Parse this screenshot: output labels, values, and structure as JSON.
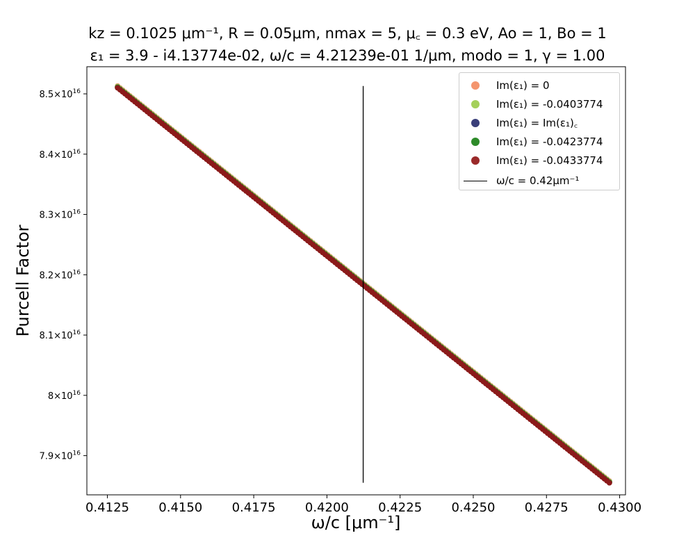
{
  "title": {
    "line1": "kz = 0.1025 μm⁻¹, R = 0.05μm, nmax = 5, μ꜀ = 0.3 eV, Ao = 1, Bo = 1",
    "line2": "ε₁ = 3.9 - i4.13774e-02, ω/c = 4.21239e-01 1/μm, modo = 1, γ = 1.00"
  },
  "legend": {
    "placement": "top-right",
    "items": [
      {
        "label": "Im(ε₁) = 0",
        "color": "#f4956e",
        "kind": "marker"
      },
      {
        "label": "Im(ε₁) = -0.0403774",
        "color": "#a4d05a",
        "kind": "marker"
      },
      {
        "label": "Im(ε₁) = Im(ε₁)꜀",
        "color": "#3a3f7a",
        "kind": "marker"
      },
      {
        "label": "Im(ε₁) = -0.0423774",
        "color": "#2e8b2a",
        "kind": "marker"
      },
      {
        "label": "Im(ε₁) = -0.0433774",
        "color": "#9a2a2a",
        "kind": "marker"
      },
      {
        "label": "ω/c = 0.42μm⁻¹",
        "color": "#000000",
        "kind": "line"
      }
    ]
  },
  "chart_data": {
    "type": "scatter",
    "xlabel": "ω/c [μm⁻¹]",
    "ylabel": "Purcell Factor",
    "xlim": [
      0.4118,
      0.4302
    ],
    "ylim": [
      7.835e+16,
      8.545e+16
    ],
    "grid": false,
    "x_ticks": [
      {
        "value": 0.4125,
        "label": "0.4125"
      },
      {
        "value": 0.415,
        "label": "0.4150"
      },
      {
        "value": 0.4175,
        "label": "0.4175"
      },
      {
        "value": 0.42,
        "label": "0.4200"
      },
      {
        "value": 0.4225,
        "label": "0.4225"
      },
      {
        "value": 0.425,
        "label": "0.4250"
      },
      {
        "value": 0.4275,
        "label": "0.4275"
      },
      {
        "value": 0.43,
        "label": "0.4300"
      }
    ],
    "y_ticks": [
      {
        "value": 7.9e+16,
        "mant": "7.9",
        "times": "×10",
        "exp": "16"
      },
      {
        "value": 8e+16,
        "mant": "8",
        "times": "×10",
        "exp": "16"
      },
      {
        "value": 8.1e+16,
        "mant": "8.1",
        "times": "×10",
        "exp": "16"
      },
      {
        "value": 8.2e+16,
        "mant": "8.2",
        "times": "×10",
        "exp": "16"
      },
      {
        "value": 8.3e+16,
        "mant": "8.3",
        "times": "×10",
        "exp": "16"
      },
      {
        "value": 8.4e+16,
        "mant": "8.4",
        "times": "×10",
        "exp": "16"
      },
      {
        "value": 8.5e+16,
        "mant": "8.5",
        "times": "×10",
        "exp": "16"
      }
    ],
    "series": [
      {
        "name": "Im(ε₁) = 0",
        "color": "#f4956e",
        "x_range": [
          0.41285,
          0.42965
        ],
        "y_range": [
          8.513e+16,
          7.858e+16
        ],
        "points": 200
      },
      {
        "name": "Im(ε₁) = -0.0403774",
        "color": "#a4d05a",
        "x_range": [
          0.41285,
          0.42965
        ],
        "y_range": [
          8.512e+16,
          7.857e+16
        ],
        "points": 200
      },
      {
        "name": "Im(ε₁) = Im(ε₁)꜀",
        "color": "#3a3f7a",
        "x_range": [
          0.41285,
          0.42965
        ],
        "y_range": [
          8.511e+16,
          7.856e+16
        ],
        "points": 200
      },
      {
        "name": "Im(ε₁) = -0.0423774",
        "color": "#2e8b2a",
        "x_range": [
          0.41285,
          0.42965
        ],
        "y_range": [
          8.511e+16,
          7.856e+16
        ],
        "points": 200
      },
      {
        "name": "Im(ε₁) = -0.0433774",
        "color": "#8b1a1a",
        "x_range": [
          0.41285,
          0.42965
        ],
        "y_range": [
          8.51e+16,
          7.855e+16
        ],
        "points": 200
      }
    ],
    "vline": {
      "x": 0.421239,
      "y_range": [
        7.855e+16,
        8.513e+16
      ],
      "color": "#000000",
      "label": "ω/c = 0.42μm⁻¹"
    }
  }
}
